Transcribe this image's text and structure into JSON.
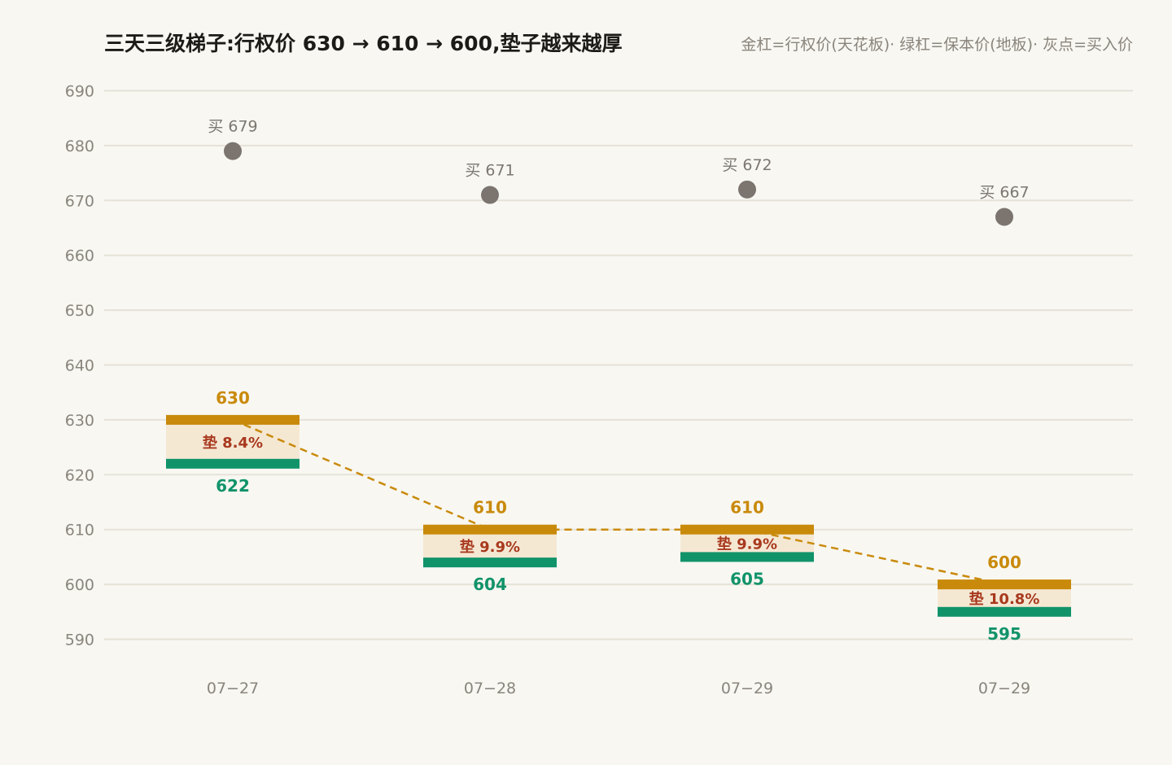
{
  "header": {
    "title": "三天三级梯子:行权价 630 → 610 → 600,垫子越来越厚",
    "legend_note": "金杠=行权价(天花板)· 绿杠=保本价(地板)· 灰点=买入价"
  },
  "colors": {
    "background": "#f8f7f2",
    "strike_bar": "#c98a0b",
    "floor_bar": "#11936a",
    "pad_fill": "#f5e8d3",
    "buy_dot": "#7b746f",
    "pad_text": "#a8391e",
    "grid": "#e6e2d8",
    "axis_text": "#8a857c",
    "connector": "#c98a0b"
  },
  "chart_data": {
    "type": "bar",
    "title": "三天三级梯子:行权价 630 → 610 → 600,垫子越来越厚",
    "xlabel": "",
    "ylabel": "",
    "ylim": [
      588,
      693
    ],
    "yticks": [
      590,
      600,
      610,
      620,
      630,
      640,
      650,
      660,
      670,
      680,
      690
    ],
    "grid": true,
    "categories": [
      "07-27",
      "07-28",
      "07-29",
      "07-29"
    ],
    "x_tick_labels": [
      "07−27",
      "07−28",
      "07−29",
      "07−29"
    ],
    "strike": [
      630,
      610,
      610,
      600
    ],
    "breakeven": [
      622,
      604,
      605,
      595
    ],
    "buy": [
      679,
      671,
      672,
      667
    ],
    "strike_labels": [
      "630",
      "610",
      "610",
      "600"
    ],
    "breakeven_labels": [
      "622",
      "604",
      "605",
      "595"
    ],
    "buy_labels": [
      "买 679",
      "买 671",
      "买 672",
      "买 667"
    ],
    "pad_labels": [
      "垫 8.4%",
      "垫 9.9%",
      "垫 9.9%",
      "垫 10.8%"
    ],
    "connector": "dashed line through strike levels"
  }
}
